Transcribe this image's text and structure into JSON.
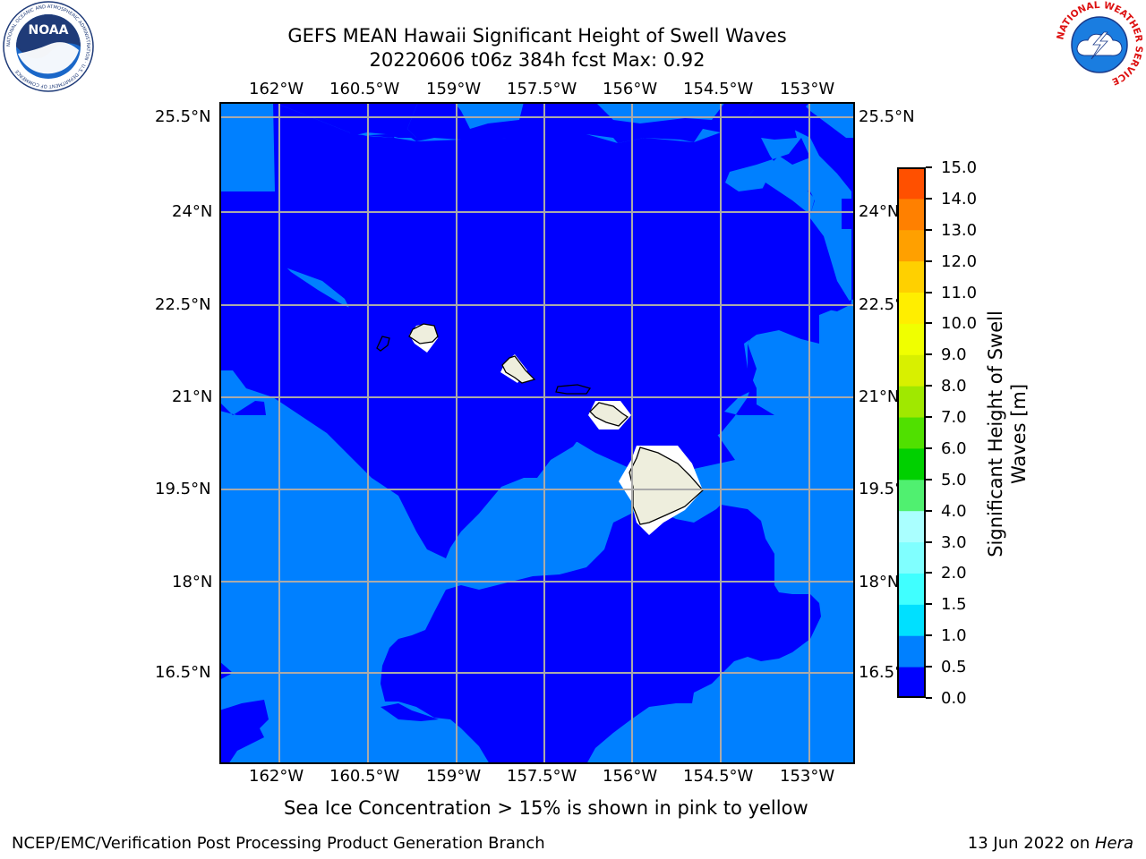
{
  "header": {
    "title_line1": "GEFS MEAN Hawaii Significant Height of Swell Waves",
    "title_line2": "20220606 t06z 384h fcst   Max: 0.92"
  },
  "logos": {
    "left": {
      "name": "noaa-logo",
      "text": "NOAA",
      "ring_text": "NATIONAL OCEANIC AND ATMOSPHERIC ADMINISTRATION · U.S. DEPARTMENT OF COMMERCE"
    },
    "right": {
      "name": "nws-logo",
      "ring_text": "NATIONAL WEATHER SERVICE"
    }
  },
  "map": {
    "lon_labels": [
      "162°W",
      "160.5°W",
      "159°W",
      "157.5°W",
      "156°W",
      "154.5°W",
      "153°W"
    ],
    "lat_labels": [
      "25.5°N",
      "24°N",
      "22.5°N",
      "21°N",
      "19.5°N",
      "18°N",
      "16.5°N"
    ],
    "lat_labels_right": [
      "25.5°N",
      "24°N",
      "22.5°N",
      "21°N",
      "19.5°N",
      "18°N",
      "16.5°N"
    ],
    "colors": {
      "dark_swell": "#0000ff",
      "light_swell": "#0080ff",
      "land": "#eeeedd",
      "grid": "#aaaaaa"
    }
  },
  "colorbar": {
    "label_line1": "Significant Height of Swell",
    "label_line2": "Waves [m]",
    "ticks": [
      "0.0",
      "0.5",
      "1.0",
      "1.5",
      "2.0",
      "3.0",
      "4.0",
      "5.0",
      "6.0",
      "7.0",
      "8.0",
      "9.0",
      "10.0",
      "11.0",
      "12.0",
      "13.0",
      "14.0",
      "15.0"
    ],
    "colors": [
      "#0000ff",
      "#0080ff",
      "#00e0ff",
      "#40ffff",
      "#80ffff",
      "#aaffff",
      "#50f070",
      "#00d000",
      "#50e000",
      "#a0e800",
      "#d8f000",
      "#f0ff00",
      "#ffee00",
      "#ffd000",
      "#ffa000",
      "#ff8000",
      "#ff5000",
      "#ff1a00"
    ]
  },
  "caption": "Sea Ice Concentration > 15% is shown in pink to yellow",
  "footer": {
    "left": "NCEP/EMC/Verification Post Processing Product Generation Branch",
    "right_prefix": "13 Jun 2022 on ",
    "right_machine": "Hera"
  }
}
